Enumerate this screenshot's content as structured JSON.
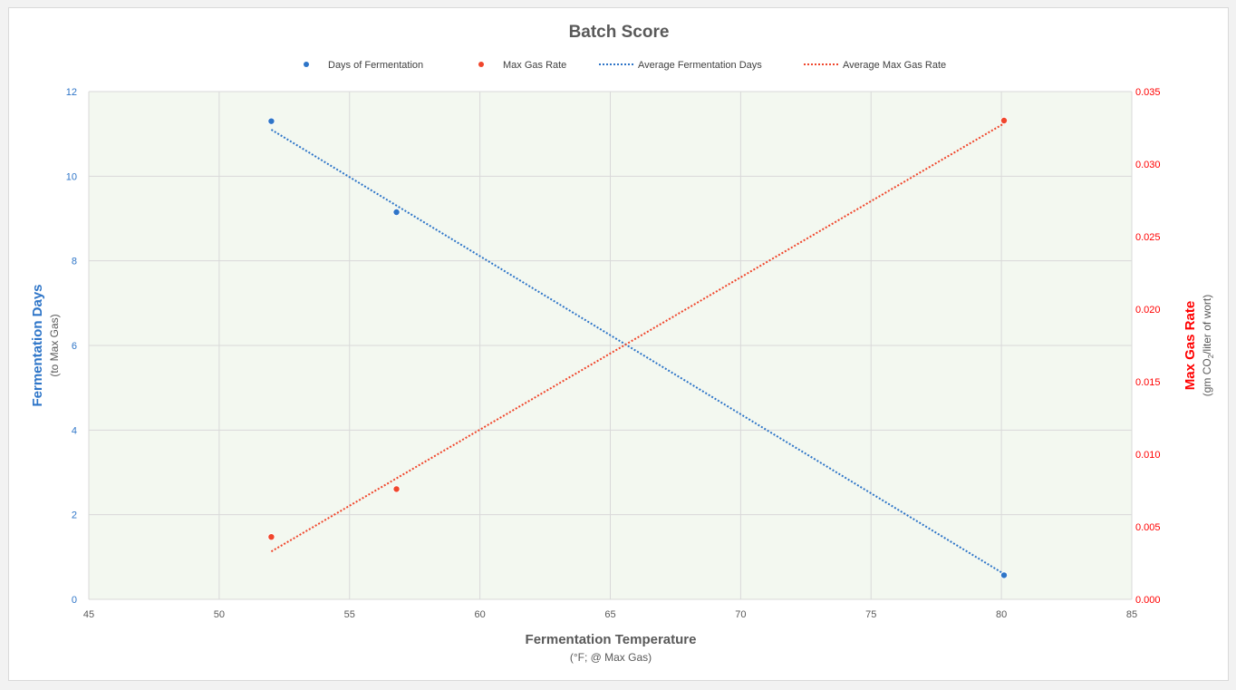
{
  "chart_data": {
    "type": "scatter",
    "title": "Batch Score",
    "xlabel": "Fermentation Temperature",
    "xlabel_sub": "(°F; @ Max Gas)",
    "ylabel_left": "Fermentation Days",
    "ylabel_left_sub": "(to Max Gas)",
    "ylabel_right": "Max Gas Rate",
    "ylabel_right_sub_parts": [
      "(gm CO",
      "2",
      "/liter of wort)"
    ],
    "xlim": [
      45,
      85
    ],
    "x_ticks": [
      "45",
      "50",
      "55",
      "60",
      "65",
      "70",
      "75",
      "80",
      "85"
    ],
    "y_left_lim": [
      0,
      12
    ],
    "y_left_ticks": [
      "0",
      "2",
      "4",
      "6",
      "8",
      "10",
      "12"
    ],
    "y_right_lim": [
      0,
      0.035
    ],
    "y_right_ticks": [
      "0.000",
      "0.005",
      "0.010",
      "0.015",
      "0.020",
      "0.025",
      "0.030",
      "0.035"
    ],
    "grid": true,
    "plot_background": "#f3f8f0",
    "legend_position": "top",
    "series": [
      {
        "name": "Days of Fermentation",
        "axis": "left",
        "color": "#2e75c8",
        "points": [
          [
            52.0,
            11.3
          ],
          [
            56.8,
            9.15
          ],
          [
            80.1,
            0.57
          ]
        ]
      },
      {
        "name": "Max Gas Rate",
        "axis": "right",
        "color": "#f0462c",
        "points": [
          [
            52.0,
            0.0043
          ],
          [
            56.8,
            0.0076
          ],
          [
            80.1,
            0.033
          ]
        ]
      }
    ],
    "trendlines": [
      {
        "name": "Average Fermentation Days",
        "axis": "left",
        "color": "#2e75c8",
        "style": "dotted",
        "points": [
          [
            52.0,
            11.1
          ],
          [
            80.1,
            0.6
          ]
        ]
      },
      {
        "name": "Average Max Gas Rate",
        "axis": "right",
        "color": "#f0462c",
        "style": "dotted",
        "points": [
          [
            52.0,
            0.0033
          ],
          [
            80.1,
            0.0328
          ]
        ]
      }
    ],
    "colors": {
      "left_axis": "#2e75c8",
      "right_axis": "#ff0000",
      "title": "#595959",
      "grid": "#d9d9d9",
      "tick_label": "#595959"
    }
  }
}
